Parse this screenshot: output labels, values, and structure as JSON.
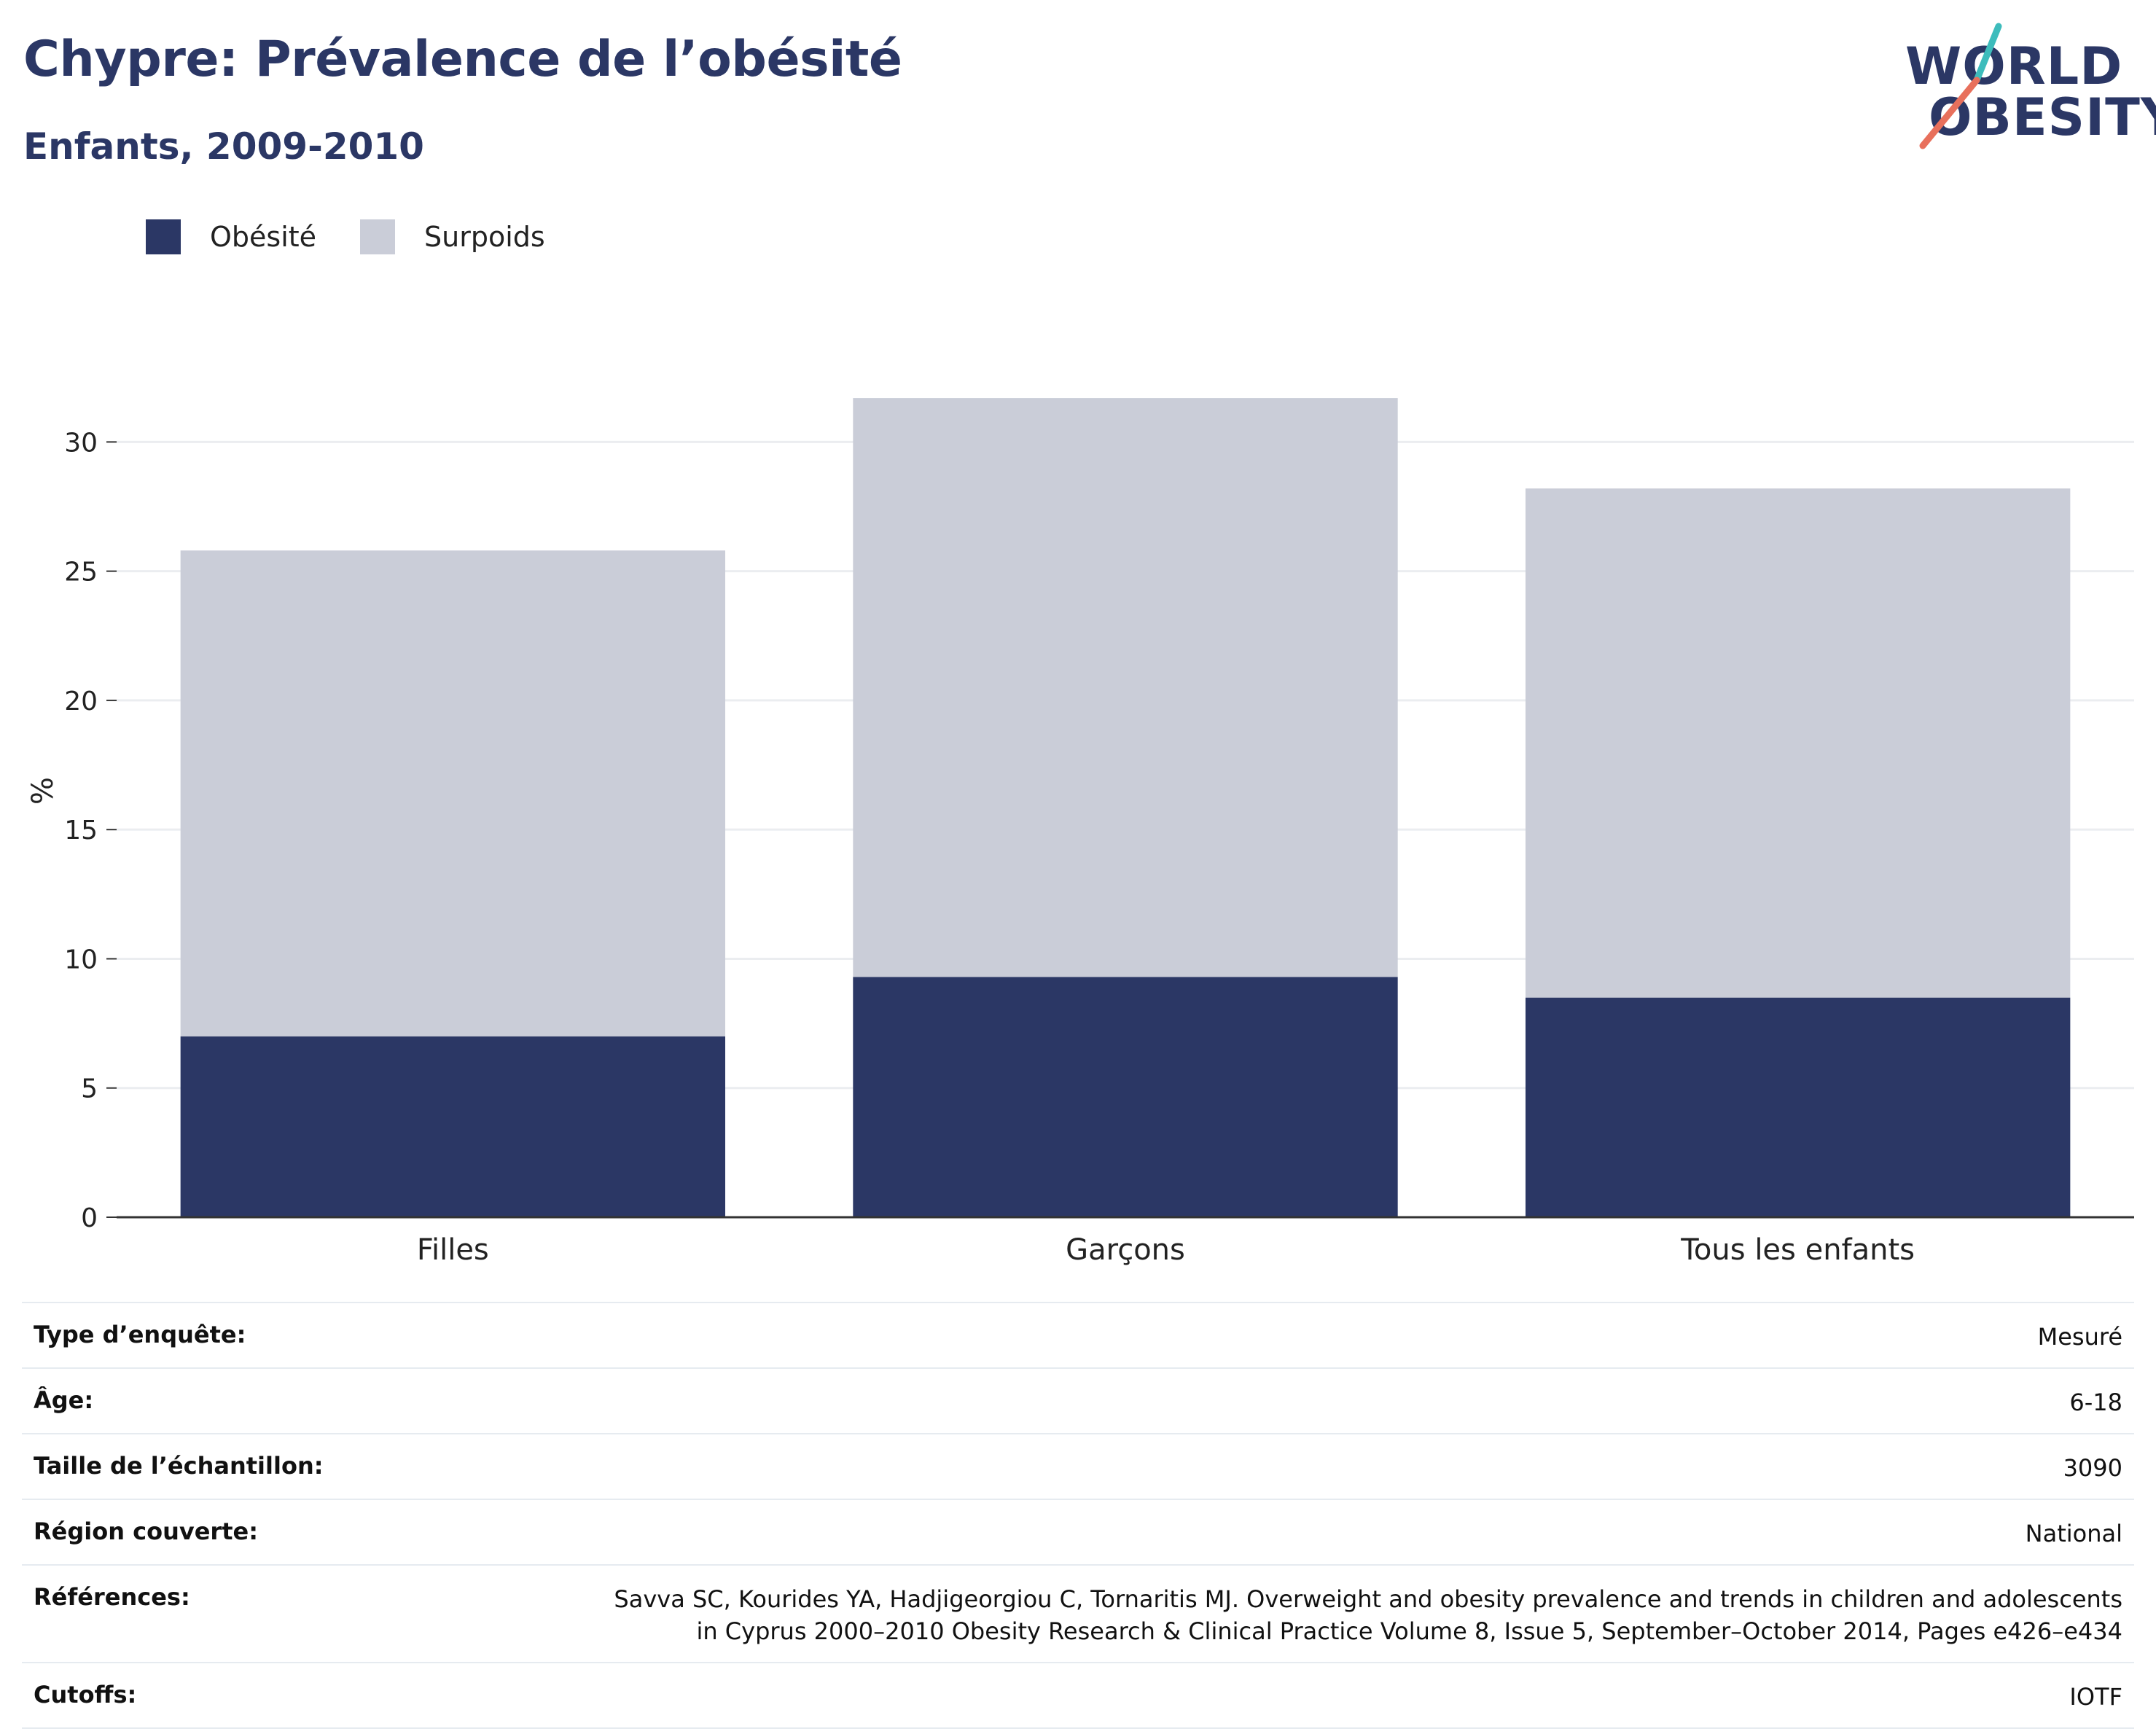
{
  "header": {
    "title": "Chypre: Prévalence de l’obésité",
    "subtitle": "Enfants, 2009-2010"
  },
  "logo": {
    "line1": "WORLD",
    "line2": "OBESITY",
    "colors": {
      "text": "#2b3765",
      "slash_top": "#3dbcbc",
      "slash_bottom": "#e8705c"
    }
  },
  "legend": [
    {
      "label": "Obésité",
      "color": "#2b3765"
    },
    {
      "label": "Surpoids",
      "color": "#cacdd8"
    }
  ],
  "chart_data": {
    "type": "bar",
    "stacked": true,
    "categories": [
      "Filles",
      "Garçons",
      "Tous les enfants"
    ],
    "series": [
      {
        "name": "Obésité",
        "color": "#2b3765",
        "values": [
          7.0,
          9.3,
          8.5
        ]
      },
      {
        "name": "Surpoids",
        "color": "#cacdd8",
        "values": [
          18.8,
          22.4,
          19.7
        ]
      }
    ],
    "ylabel": "%",
    "ylim": [
      0,
      33
    ],
    "yticks": [
      0,
      5,
      10,
      15,
      20,
      25,
      30
    ],
    "grid": true,
    "legend_position": "top-left"
  },
  "details": [
    {
      "label": "Type d’enquête:",
      "value": "Mesuré"
    },
    {
      "label": "Âge:",
      "value": "6-18"
    },
    {
      "label": "Taille de l’échantillon:",
      "value": "3090"
    },
    {
      "label": "Région couverte:",
      "value": "National"
    },
    {
      "label": "Références:",
      "value": "Savva SC, Kourides YA, Hadjigeorgiou C, Tornaritis MJ. Overweight and obesity prevalence and trends in children and adolescents in Cyprus 2000–2010 Obesity Research & Clinical Practice Volume 8, Issue 5, September–October 2014, Pages e426–e434"
    },
    {
      "label": "Cutoffs:",
      "value": "IOTF"
    }
  ]
}
